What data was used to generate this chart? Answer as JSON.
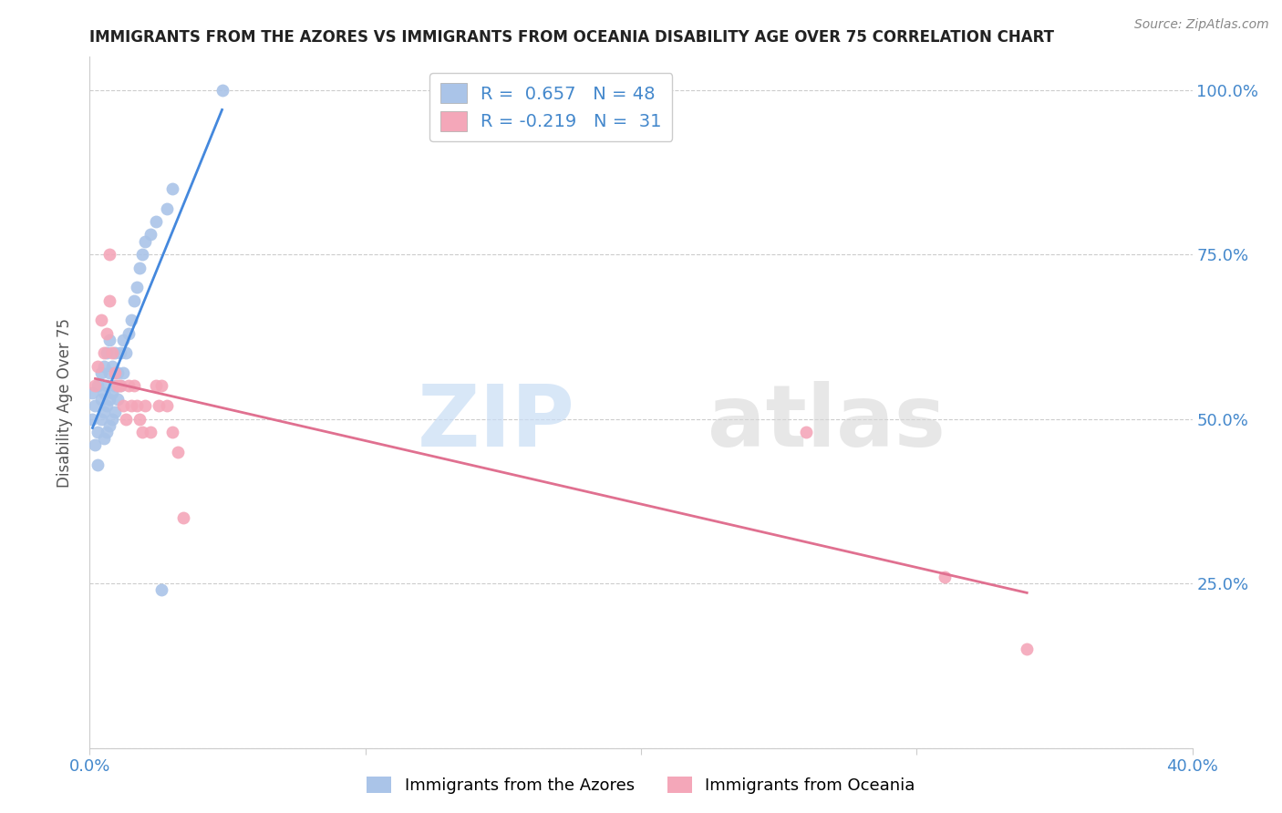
{
  "title": "IMMIGRANTS FROM THE AZORES VS IMMIGRANTS FROM OCEANIA DISABILITY AGE OVER 75 CORRELATION CHART",
  "source": "Source: ZipAtlas.com",
  "ylabel": "Disability Age Over 75",
  "right_yticks": [
    "100.0%",
    "75.0%",
    "50.0%",
    "25.0%"
  ],
  "right_ytick_vals": [
    1.0,
    0.75,
    0.5,
    0.25
  ],
  "background_color": "#ffffff",
  "grid_color": "#cccccc",
  "azores_color": "#aac4e8",
  "oceania_color": "#f4a7b9",
  "azores_line_color": "#4488dd",
  "oceania_line_color": "#e07090",
  "R_azores": 0.657,
  "N_azores": 48,
  "R_oceania": -0.219,
  "N_oceania": 31,
  "watermark_zip": "ZIP",
  "watermark_atlas": "atlas",
  "azores_x": [
    0.001,
    0.001,
    0.002,
    0.002,
    0.003,
    0.003,
    0.003,
    0.004,
    0.004,
    0.004,
    0.005,
    0.005,
    0.005,
    0.005,
    0.006,
    0.006,
    0.006,
    0.006,
    0.007,
    0.007,
    0.007,
    0.007,
    0.008,
    0.008,
    0.008,
    0.009,
    0.009,
    0.009,
    0.01,
    0.01,
    0.011,
    0.011,
    0.012,
    0.012,
    0.013,
    0.014,
    0.015,
    0.016,
    0.017,
    0.018,
    0.019,
    0.02,
    0.022,
    0.024,
    0.026,
    0.028,
    0.03,
    0.048
  ],
  "azores_y": [
    0.5,
    0.54,
    0.46,
    0.52,
    0.43,
    0.48,
    0.55,
    0.5,
    0.53,
    0.57,
    0.47,
    0.51,
    0.54,
    0.58,
    0.48,
    0.52,
    0.55,
    0.6,
    0.49,
    0.53,
    0.57,
    0.62,
    0.5,
    0.54,
    0.58,
    0.51,
    0.55,
    0.6,
    0.53,
    0.57,
    0.55,
    0.6,
    0.57,
    0.62,
    0.6,
    0.63,
    0.65,
    0.68,
    0.7,
    0.73,
    0.75,
    0.77,
    0.78,
    0.8,
    0.24,
    0.82,
    0.85,
    1.0
  ],
  "oceania_x": [
    0.002,
    0.003,
    0.004,
    0.005,
    0.006,
    0.007,
    0.007,
    0.008,
    0.009,
    0.01,
    0.011,
    0.012,
    0.013,
    0.014,
    0.015,
    0.016,
    0.017,
    0.018,
    0.019,
    0.02,
    0.022,
    0.024,
    0.025,
    0.026,
    0.028,
    0.03,
    0.032,
    0.034,
    0.26,
    0.31,
    0.34
  ],
  "oceania_y": [
    0.55,
    0.58,
    0.65,
    0.6,
    0.63,
    0.75,
    0.68,
    0.6,
    0.57,
    0.55,
    0.55,
    0.52,
    0.5,
    0.55,
    0.52,
    0.55,
    0.52,
    0.5,
    0.48,
    0.52,
    0.48,
    0.55,
    0.52,
    0.55,
    0.52,
    0.48,
    0.45,
    0.35,
    0.48,
    0.26,
    0.15
  ],
  "xmin": 0.0,
  "xmax": 0.4,
  "ymin": 0.0,
  "ymax": 1.05
}
